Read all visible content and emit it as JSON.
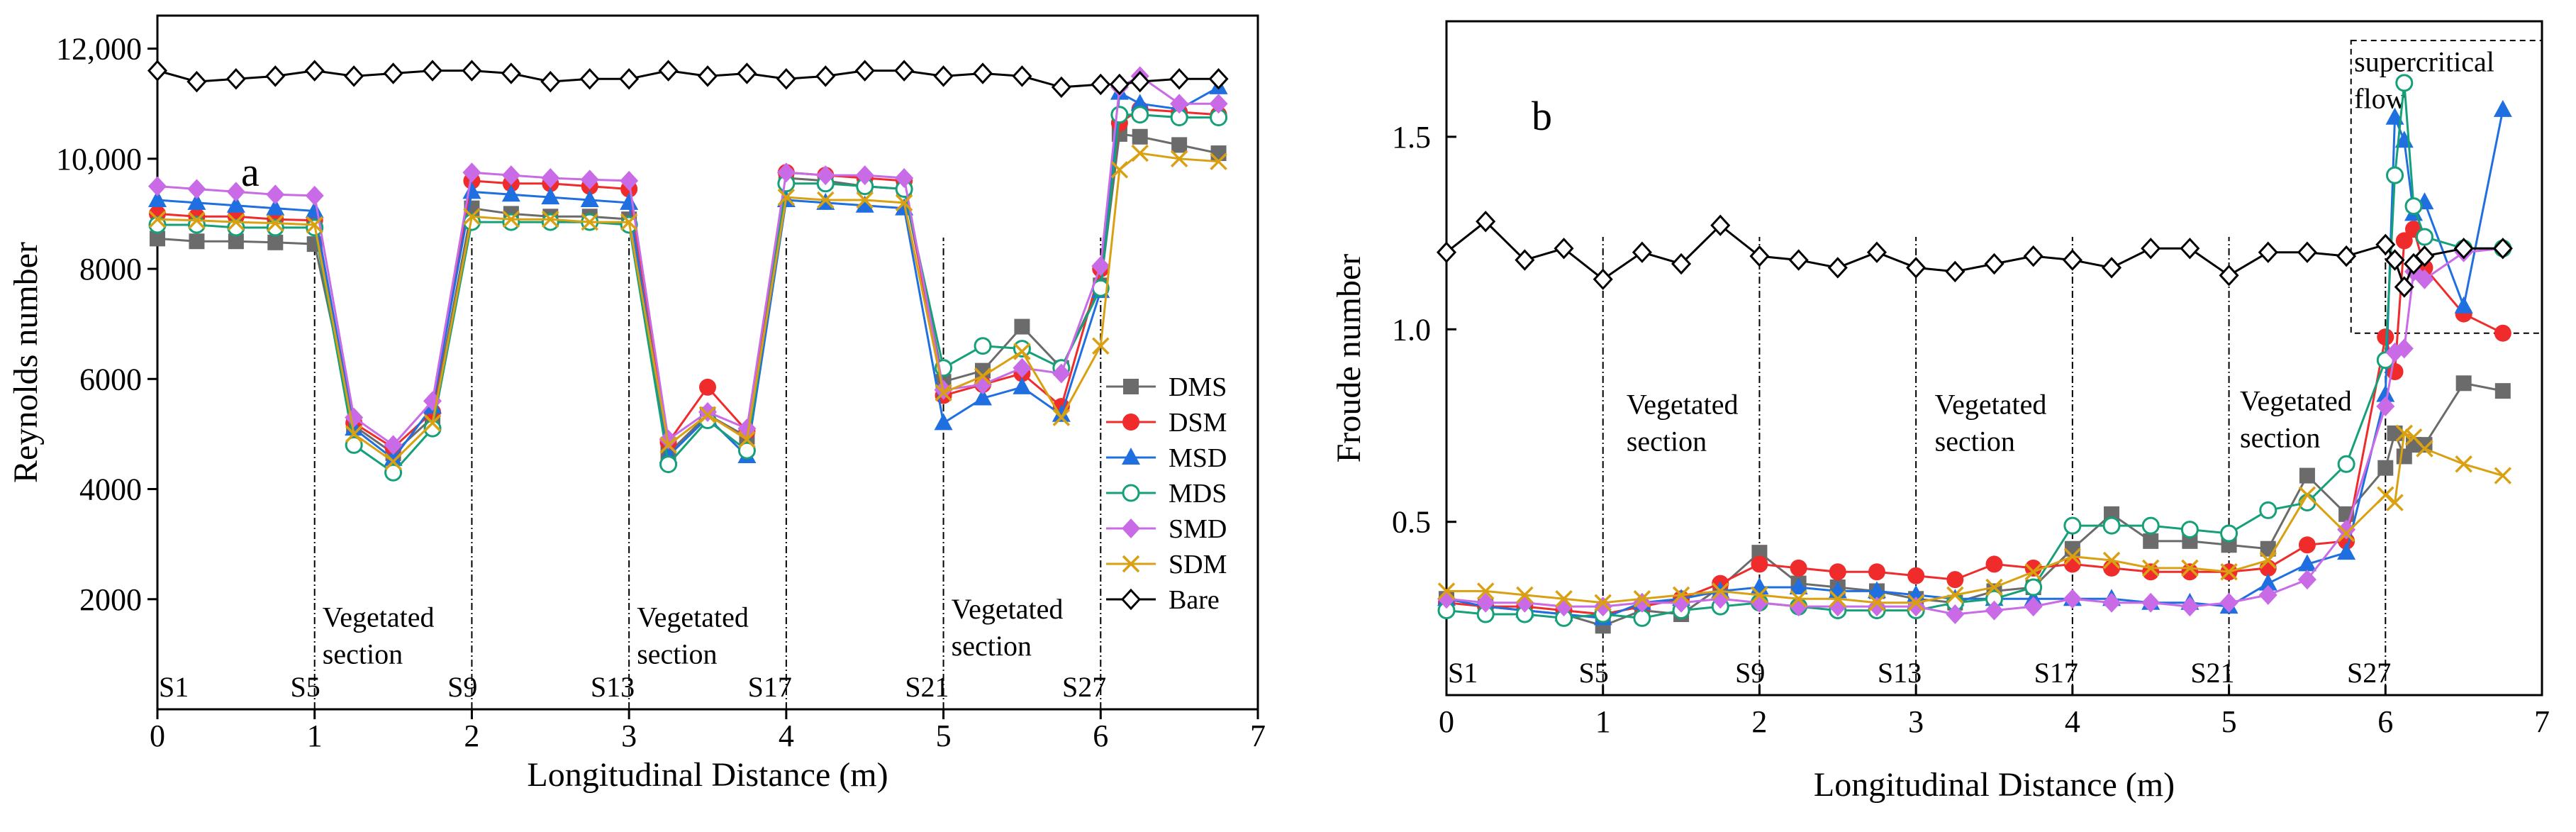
{
  "chart_data": [
    {
      "panel": "a",
      "type": "line",
      "xlabel": "Longitudinal Distance (m)",
      "ylabel": "Reynolds number",
      "xlim": [
        0,
        7
      ],
      "ylim": [
        0,
        12600
      ],
      "x_ticks": [
        "0",
        "1",
        "2",
        "3",
        "4",
        "5",
        "6",
        "7"
      ],
      "y_ticks": [
        "2000",
        "4000",
        "6000",
        "8000",
        "10,000",
        "12,000"
      ],
      "y_tick_values": [
        2000,
        4000,
        6000,
        8000,
        10000,
        12000
      ],
      "sections": [
        {
          "label": "S1",
          "x": 0
        },
        {
          "label": "S5",
          "x": 1
        },
        {
          "label": "S9",
          "x": 2
        },
        {
          "label": "S13",
          "x": 3
        },
        {
          "label": "S17",
          "x": 4
        },
        {
          "label": "S21",
          "x": 5
        },
        {
          "label": "S27",
          "x": 6
        }
      ],
      "dividers": [
        1,
        2,
        3,
        4,
        5,
        6
      ],
      "annotations": [
        {
          "lines": [
            "Vegetated",
            "section"
          ],
          "x": 1.05,
          "y": 1500
        },
        {
          "lines": [
            "Vegetated",
            "section"
          ],
          "x": 3.05,
          "y": 1500
        },
        {
          "lines": [
            "Vegetated",
            "section"
          ],
          "x": 5.05,
          "y": 1650
        }
      ],
      "legend": "right",
      "x": [
        0,
        0.25,
        0.5,
        0.75,
        1,
        1.25,
        1.5,
        1.75,
        2,
        2.25,
        2.5,
        2.75,
        3,
        3.25,
        3.5,
        3.75,
        4,
        4.25,
        4.5,
        4.75,
        5,
        5.25,
        5.5,
        5.75,
        6,
        6.12,
        6.25,
        6.5,
        6.75
      ],
      "series": [
        {
          "name": "DMS",
          "values": [
            8550,
            8500,
            8500,
            8480,
            8450,
            5150,
            4650,
            5300,
            9100,
            9000,
            8950,
            8950,
            8900,
            4650,
            5350,
            4950,
            9650,
            9600,
            9500,
            9450,
            5950,
            6150,
            6950,
            6200,
            7700,
            10450,
            10400,
            10250,
            10100
          ],
          "color": "#6b6b6b",
          "marker": "square"
        },
        {
          "name": "DSM",
          "values": [
            9000,
            8950,
            8950,
            8900,
            8880,
            5200,
            4750,
            5400,
            9600,
            9550,
            9550,
            9500,
            9450,
            4850,
            5850,
            5050,
            9750,
            9700,
            9650,
            9600,
            5700,
            5900,
            6100,
            5500,
            8000,
            10650,
            10900,
            10850,
            10800
          ],
          "color": "#ef2b2b",
          "marker": "circle"
        },
        {
          "name": "MSD",
          "values": [
            9250,
            9200,
            9150,
            9100,
            9050,
            5100,
            4550,
            5500,
            9400,
            9350,
            9300,
            9250,
            9200,
            4600,
            5300,
            4600,
            9250,
            9200,
            9150,
            9100,
            5200,
            5650,
            5850,
            5350,
            7600,
            11200,
            11000,
            10900,
            11300
          ],
          "color": "#1f6fe0",
          "marker": "triangle"
        },
        {
          "name": "MDS",
          "values": [
            8800,
            8800,
            8750,
            8750,
            8750,
            4800,
            4300,
            5100,
            8850,
            8850,
            8850,
            8850,
            8800,
            4450,
            5250,
            4700,
            9550,
            9550,
            9500,
            9450,
            6200,
            6600,
            6550,
            6200,
            7650,
            10800,
            10800,
            10750,
            10750
          ],
          "color": "#16a07a",
          "marker": "circle-open"
        },
        {
          "name": "SMD",
          "values": [
            9500,
            9450,
            9400,
            9350,
            9330,
            5300,
            4800,
            5600,
            9750,
            9700,
            9650,
            9620,
            9600,
            4900,
            5400,
            5100,
            9750,
            9700,
            9700,
            9650,
            5800,
            5900,
            6200,
            6100,
            8050,
            11300,
            11500,
            11000,
            11000
          ],
          "color": "#c96ae6",
          "marker": "diamond"
        },
        {
          "name": "SDM",
          "values": [
            8900,
            8880,
            8850,
            8830,
            8800,
            5000,
            4500,
            5200,
            8950,
            8900,
            8900,
            8850,
            8850,
            4800,
            5350,
            4900,
            9300,
            9250,
            9250,
            9200,
            5750,
            6050,
            6500,
            5300,
            6600,
            9800,
            10100,
            10000,
            9950
          ],
          "color": "#d9a112",
          "marker": "x"
        },
        {
          "name": "Bare",
          "values": [
            11600,
            11400,
            11450,
            11500,
            11600,
            11500,
            11550,
            11600,
            11600,
            11550,
            11400,
            11450,
            11450,
            11600,
            11500,
            11550,
            11450,
            11500,
            11600,
            11600,
            11500,
            11550,
            11500,
            11300,
            11350,
            11350,
            11400,
            11450,
            11450
          ],
          "color": "#000000",
          "marker": "diamond-open"
        }
      ]
    },
    {
      "panel": "b",
      "type": "line",
      "xlabel": "Longitudinal Distance (m)",
      "ylabel": "Froude number",
      "xlim": [
        0,
        7
      ],
      "ylim": [
        0.05,
        1.8
      ],
      "x_ticks": [
        "0",
        "1",
        "2",
        "3",
        "4",
        "5",
        "6",
        "7"
      ],
      "y_ticks": [
        "0.5",
        "1.0",
        "1.5"
      ],
      "y_tick_values": [
        0.5,
        1.0,
        1.5
      ],
      "sections": [
        {
          "label": "S1",
          "x": 0
        },
        {
          "label": "S5",
          "x": 1
        },
        {
          "label": "S9",
          "x": 2
        },
        {
          "label": "S13",
          "x": 3
        },
        {
          "label": "S17",
          "x": 4
        },
        {
          "label": "S21",
          "x": 5
        },
        {
          "label": "S27",
          "x": 6
        }
      ],
      "dividers": [
        1,
        2,
        3,
        4,
        5,
        6
      ],
      "annotations": [
        {
          "lines": [
            "Vegetated",
            "section"
          ],
          "x": 1.15,
          "y": 0.78
        },
        {
          "lines": [
            "Vegetated",
            "section"
          ],
          "x": 3.12,
          "y": 0.78
        },
        {
          "lines": [
            "Vegetated",
            "section"
          ],
          "x": 5.07,
          "y": 0.79
        },
        {
          "lines": [
            "supercritical",
            "flow"
          ],
          "x": 5.8,
          "y": 1.67
        }
      ],
      "x": [
        0,
        0.25,
        0.5,
        0.75,
        1,
        1.25,
        1.5,
        1.75,
        2,
        2.25,
        2.5,
        2.75,
        3,
        3.25,
        3.5,
        3.75,
        4,
        4.25,
        4.5,
        4.75,
        5,
        5.25,
        5.5,
        5.75,
        6,
        6.06,
        6.12,
        6.18,
        6.25,
        6.5,
        6.75
      ],
      "series": [
        {
          "name": "DMS",
          "values": [
            0.3,
            0.28,
            0.27,
            0.26,
            0.23,
            0.27,
            0.26,
            0.33,
            0.42,
            0.34,
            0.33,
            0.32,
            0.3,
            0.29,
            0.32,
            0.33,
            0.43,
            0.52,
            0.45,
            0.45,
            0.44,
            0.43,
            0.62,
            0.52,
            0.64,
            0.73,
            0.67,
            0.7,
            0.7,
            0.86,
            0.84
          ],
          "color": "#6b6b6b",
          "marker": "square"
        },
        {
          "name": "DSM",
          "values": [
            0.29,
            0.28,
            0.28,
            0.27,
            0.26,
            0.28,
            0.3,
            0.34,
            0.39,
            0.38,
            0.37,
            0.37,
            0.36,
            0.35,
            0.39,
            0.38,
            0.39,
            0.38,
            0.37,
            0.37,
            0.37,
            0.38,
            0.44,
            0.45,
            0.98,
            0.89,
            1.23,
            1.26,
            1.16,
            1.04,
            0.99
          ],
          "color": "#ef2b2b",
          "marker": "circle"
        },
        {
          "name": "MSD",
          "values": [
            0.3,
            0.28,
            0.27,
            0.26,
            0.25,
            0.29,
            0.3,
            0.32,
            0.33,
            0.33,
            0.32,
            0.32,
            0.31,
            0.3,
            0.3,
            0.3,
            0.3,
            0.3,
            0.29,
            0.29,
            0.28,
            0.34,
            0.39,
            0.42,
            0.83,
            1.55,
            1.49,
            1.3,
            1.33,
            1.06,
            1.57
          ],
          "color": "#1f6fe0",
          "marker": "triangle"
        },
        {
          "name": "MDS",
          "values": [
            0.27,
            0.26,
            0.26,
            0.25,
            0.26,
            0.25,
            0.27,
            0.28,
            0.29,
            0.28,
            0.27,
            0.27,
            0.27,
            0.29,
            0.3,
            0.33,
            0.49,
            0.49,
            0.49,
            0.48,
            0.47,
            0.53,
            0.55,
            0.65,
            0.92,
            1.4,
            1.64,
            1.32,
            1.24,
            1.21,
            1.21
          ],
          "color": "#16a07a",
          "marker": "circle-open"
        },
        {
          "name": "SMD",
          "values": [
            0.3,
            0.29,
            0.29,
            0.28,
            0.28,
            0.29,
            0.29,
            0.3,
            0.29,
            0.28,
            0.28,
            0.28,
            0.28,
            0.26,
            0.27,
            0.28,
            0.3,
            0.29,
            0.29,
            0.28,
            0.29,
            0.31,
            0.35,
            0.48,
            0.8,
            0.94,
            0.95,
            1.15,
            1.13,
            1.2,
            1.21
          ],
          "color": "#c96ae6",
          "marker": "diamond"
        },
        {
          "name": "SDM",
          "values": [
            0.32,
            0.32,
            0.31,
            0.3,
            0.29,
            0.3,
            0.31,
            0.32,
            0.31,
            0.3,
            0.3,
            0.29,
            0.29,
            0.31,
            0.33,
            0.37,
            0.41,
            0.4,
            0.38,
            0.38,
            0.37,
            0.4,
            0.57,
            0.47,
            0.57,
            0.55,
            0.73,
            0.72,
            0.69,
            0.65,
            0.62
          ],
          "color": "#d9a112",
          "marker": "x"
        },
        {
          "name": "Bare",
          "values": [
            1.2,
            1.28,
            1.18,
            1.21,
            1.13,
            1.2,
            1.17,
            1.27,
            1.19,
            1.18,
            1.16,
            1.2,
            1.16,
            1.15,
            1.17,
            1.19,
            1.18,
            1.16,
            1.21,
            1.21,
            1.14,
            1.2,
            1.2,
            1.19,
            1.22,
            1.18,
            1.11,
            1.17,
            1.19,
            1.21,
            1.21
          ],
          "color": "#000000",
          "marker": "diamond-open"
        }
      ]
    }
  ]
}
